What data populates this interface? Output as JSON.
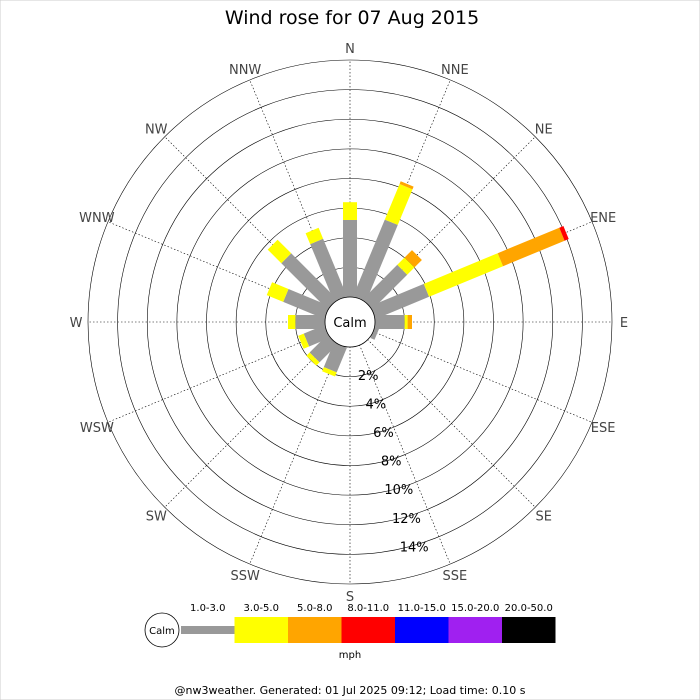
{
  "chart_data": {
    "type": "windrose",
    "title": "Wind rose for 07 Aug 2015",
    "directions": [
      "N",
      "NNE",
      "NE",
      "ENE",
      "E",
      "ESE",
      "SE",
      "SSE",
      "S",
      "SSW",
      "SW",
      "WSW",
      "W",
      "WNW",
      "NW",
      "NNW"
    ],
    "radial_ticks": [
      "2%",
      "4%",
      "6%",
      "8%",
      "10%",
      "12%",
      "14%"
    ],
    "radial_max": 16,
    "calm_label": "Calm",
    "unit": "mph",
    "bins": [
      {
        "label": "1.0-3.0",
        "color": "#999999"
      },
      {
        "label": "3.0-5.0",
        "color": "#ffff00"
      },
      {
        "label": "5.0-8.0",
        "color": "#ffa500"
      },
      {
        "label": "8.0-11.0",
        "color": "#ff0000"
      },
      {
        "label": "11.0-15.0",
        "color": "#0000ff"
      },
      {
        "label": "15.0-20.0",
        "color": "#a020f0"
      },
      {
        "label": "20.0-50.0",
        "color": "#000000"
      }
    ],
    "series": [
      {
        "direction": "N",
        "values": [
          5.2,
          1.2,
          0,
          0,
          0,
          0,
          0
        ]
      },
      {
        "direction": "NNE",
        "values": [
          5.6,
          2.6,
          0.2,
          0,
          0,
          0,
          0
        ]
      },
      {
        "direction": "NE",
        "values": [
          3.3,
          0.7,
          0.7,
          0,
          0,
          0,
          0
        ]
      },
      {
        "direction": "ENE",
        "values": [
          3.9,
          5.4,
          4.5,
          0.3,
          0,
          0,
          0
        ]
      },
      {
        "direction": "E",
        "values": [
          2.0,
          0.2,
          0.3,
          0,
          0,
          0,
          0
        ]
      },
      {
        "direction": "ESE",
        "values": [
          0.3,
          0,
          0,
          0,
          0,
          0,
          0
        ]
      },
      {
        "direction": "SE",
        "values": [
          0,
          0,
          0,
          0,
          0,
          0,
          0
        ]
      },
      {
        "direction": "SSE",
        "values": [
          0,
          0,
          0,
          0,
          0,
          0,
          0
        ]
      },
      {
        "direction": "S",
        "values": [
          0,
          0,
          0,
          0,
          0,
          0,
          0
        ]
      },
      {
        "direction": "SSW",
        "values": [
          1.8,
          0.3,
          0,
          0,
          0,
          0,
          0
        ]
      },
      {
        "direction": "SW",
        "values": [
          1.7,
          0.3,
          0,
          0,
          0,
          0,
          0
        ]
      },
      {
        "direction": "WSW",
        "values": [
          1.5,
          0.4,
          0,
          0,
          0,
          0,
          0
        ]
      },
      {
        "direction": "W",
        "values": [
          2.0,
          0.5,
          0,
          0,
          0,
          0,
          0
        ]
      },
      {
        "direction": "WNW",
        "values": [
          3.0,
          1.2,
          0,
          0,
          0,
          0,
          0
        ]
      },
      {
        "direction": "NW",
        "values": [
          4.4,
          1.3,
          0,
          0,
          0,
          0,
          0
        ]
      },
      {
        "direction": "NNW",
        "values": [
          4.2,
          0.8,
          0,
          0,
          0,
          0,
          0
        ]
      }
    ]
  },
  "footer": "@nw3weather. Generated: 01 Jul 2025 09:12; Load time: 0.10 s"
}
